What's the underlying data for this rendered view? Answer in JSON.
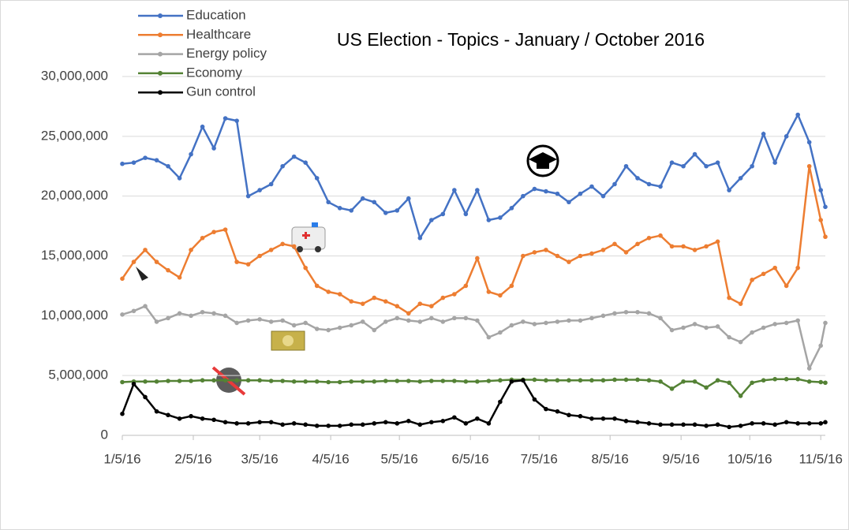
{
  "chart_data": {
    "type": "line",
    "title": "US Election - Topics - January / October 2016",
    "x": [
      "2016-01-05",
      "2016-01-10",
      "2016-01-15",
      "2016-01-20",
      "2016-01-25",
      "2016-01-30",
      "2016-02-04",
      "2016-02-09",
      "2016-02-14",
      "2016-02-19",
      "2016-02-24",
      "2016-02-29",
      "2016-03-05",
      "2016-03-10",
      "2016-03-15",
      "2016-03-20",
      "2016-03-25",
      "2016-03-30",
      "2016-04-04",
      "2016-04-09",
      "2016-04-14",
      "2016-04-19",
      "2016-04-24",
      "2016-04-29",
      "2016-05-04",
      "2016-05-09",
      "2016-05-14",
      "2016-05-19",
      "2016-05-24",
      "2016-05-29",
      "2016-06-03",
      "2016-06-08",
      "2016-06-13",
      "2016-06-18",
      "2016-06-23",
      "2016-06-28",
      "2016-07-03",
      "2016-07-08",
      "2016-07-13",
      "2016-07-18",
      "2016-07-23",
      "2016-07-28",
      "2016-08-02",
      "2016-08-07",
      "2016-08-12",
      "2016-08-17",
      "2016-08-22",
      "2016-08-27",
      "2016-09-01",
      "2016-09-06",
      "2016-09-11",
      "2016-09-16",
      "2016-09-21",
      "2016-09-26",
      "2016-10-01",
      "2016-10-06",
      "2016-10-11",
      "2016-10-16",
      "2016-10-21",
      "2016-10-26",
      "2016-10-31",
      "2016-11-05",
      "2016-11-07"
    ],
    "series": [
      {
        "name": "Education",
        "color": "#4472c4",
        "values": [
          22700000,
          22800000,
          23200000,
          23000000,
          22500000,
          21500000,
          23500000,
          25800000,
          24000000,
          26500000,
          26300000,
          20000000,
          20500000,
          21000000,
          22500000,
          23300000,
          22800000,
          21500000,
          19500000,
          19000000,
          18800000,
          19800000,
          19500000,
          18600000,
          18800000,
          19800000,
          16500000,
          18000000,
          18500000,
          20500000,
          18500000,
          20500000,
          18000000,
          18200000,
          19000000,
          20000000,
          20600000,
          20400000,
          20200000,
          19500000,
          20200000,
          20800000,
          20000000,
          21000000,
          22500000,
          21500000,
          21000000,
          20800000,
          22800000,
          22500000,
          23500000,
          22500000,
          22800000,
          20500000,
          21500000,
          22500000,
          25200000,
          22800000,
          25000000,
          26800000,
          24500000,
          20500000,
          19100000
        ]
      },
      {
        "name": "Healthcare",
        "color": "#ed7d31",
        "values": [
          13100000,
          14500000,
          15500000,
          14500000,
          13800000,
          13200000,
          15500000,
          16500000,
          17000000,
          17200000,
          14500000,
          14300000,
          15000000,
          15500000,
          16000000,
          15800000,
          14000000,
          12500000,
          12000000,
          11800000,
          11200000,
          11000000,
          11500000,
          11200000,
          10800000,
          10200000,
          11000000,
          10800000,
          11500000,
          11800000,
          12500000,
          14800000,
          12000000,
          11700000,
          12500000,
          15000000,
          15300000,
          15500000,
          15000000,
          14500000,
          15000000,
          15200000,
          15500000,
          16000000,
          15300000,
          16000000,
          16500000,
          16700000,
          15800000,
          15800000,
          15500000,
          15800000,
          16200000,
          11500000,
          11000000,
          13000000,
          13500000,
          14000000,
          12500000,
          14000000,
          22500000,
          18000000,
          16600000
        ]
      },
      {
        "name": "Energy policy",
        "color": "#a5a5a5",
        "values": [
          10100000,
          10400000,
          10800000,
          9500000,
          9800000,
          10200000,
          10000000,
          10300000,
          10200000,
          10000000,
          9400000,
          9600000,
          9700000,
          9500000,
          9600000,
          9200000,
          9400000,
          8900000,
          8800000,
          9000000,
          9200000,
          9500000,
          8800000,
          9500000,
          9800000,
          9600000,
          9500000,
          9800000,
          9500000,
          9800000,
          9800000,
          9600000,
          8200000,
          8600000,
          9200000,
          9500000,
          9300000,
          9400000,
          9500000,
          9600000,
          9600000,
          9800000,
          10000000,
          10200000,
          10300000,
          10300000,
          10200000,
          9800000,
          8800000,
          9000000,
          9300000,
          9000000,
          9100000,
          8200000,
          7800000,
          8600000,
          9000000,
          9300000,
          9400000,
          9600000,
          5600000,
          7500000,
          9400000
        ]
      },
      {
        "name": "Economy",
        "color": "#548235",
        "values": [
          4450000,
          4500000,
          4500000,
          4500000,
          4550000,
          4550000,
          4550000,
          4600000,
          4600000,
          4600000,
          4600000,
          4600000,
          4600000,
          4550000,
          4550000,
          4500000,
          4500000,
          4500000,
          4450000,
          4450000,
          4500000,
          4500000,
          4500000,
          4550000,
          4550000,
          4550000,
          4500000,
          4550000,
          4550000,
          4550000,
          4500000,
          4500000,
          4550000,
          4600000,
          4650000,
          4650000,
          4650000,
          4600000,
          4600000,
          4600000,
          4600000,
          4600000,
          4600000,
          4650000,
          4650000,
          4650000,
          4600000,
          4500000,
          3900000,
          4500000,
          4500000,
          4000000,
          4600000,
          4400000,
          3300000,
          4400000,
          4600000,
          4700000,
          4700000,
          4700000,
          4500000,
          4450000,
          4400000
        ]
      },
      {
        "name": "Gun control",
        "color": "#000000",
        "values": [
          1800000,
          4300000,
          3200000,
          2000000,
          1700000,
          1400000,
          1600000,
          1400000,
          1300000,
          1100000,
          1000000,
          1000000,
          1100000,
          1100000,
          900000,
          1000000,
          900000,
          800000,
          800000,
          800000,
          900000,
          900000,
          1000000,
          1100000,
          1000000,
          1200000,
          900000,
          1100000,
          1200000,
          1500000,
          1000000,
          1400000,
          1000000,
          2800000,
          4500000,
          4600000,
          3000000,
          2200000,
          2000000,
          1700000,
          1600000,
          1400000,
          1400000,
          1400000,
          1200000,
          1100000,
          1000000,
          900000,
          900000,
          900000,
          900000,
          800000,
          900000,
          700000,
          800000,
          1000000,
          1000000,
          900000,
          1100000,
          1000000,
          1000000,
          1000000,
          1100000
        ]
      }
    ],
    "xlim": [
      "2016-01-05",
      "2016-11-07"
    ],
    "xticks": [
      {
        "value": "2016-01-05",
        "label": "1/5/16"
      },
      {
        "value": "2016-02-05",
        "label": "2/5/16"
      },
      {
        "value": "2016-03-05",
        "label": "3/5/16"
      },
      {
        "value": "2016-04-05",
        "label": "4/5/16"
      },
      {
        "value": "2016-05-05",
        "label": "5/5/16"
      },
      {
        "value": "2016-06-05",
        "label": "6/5/16"
      },
      {
        "value": "2016-07-05",
        "label": "7/5/16"
      },
      {
        "value": "2016-08-05",
        "label": "8/5/16"
      },
      {
        "value": "2016-09-05",
        "label": "9/5/16"
      },
      {
        "value": "2016-10-05",
        "label": "10/5/16"
      },
      {
        "value": "2016-11-05",
        "label": "11/5/16"
      }
    ],
    "ylim": [
      0,
      30000000
    ],
    "yticks": [
      0,
      {
        "value": 5000000,
        "label": "5,000,000"
      },
      {
        "value": 10000000,
        "label": "10,000,000"
      },
      {
        "value": 15000000,
        "label": "15,000,000"
      },
      {
        "value": 20000000,
        "label": "20,000,000"
      },
      {
        "value": 25000000,
        "label": "25,000,000"
      },
      {
        "value": 30000000,
        "label": "30,000,000"
      }
    ],
    "grid": true,
    "legend": "top-left"
  }
}
